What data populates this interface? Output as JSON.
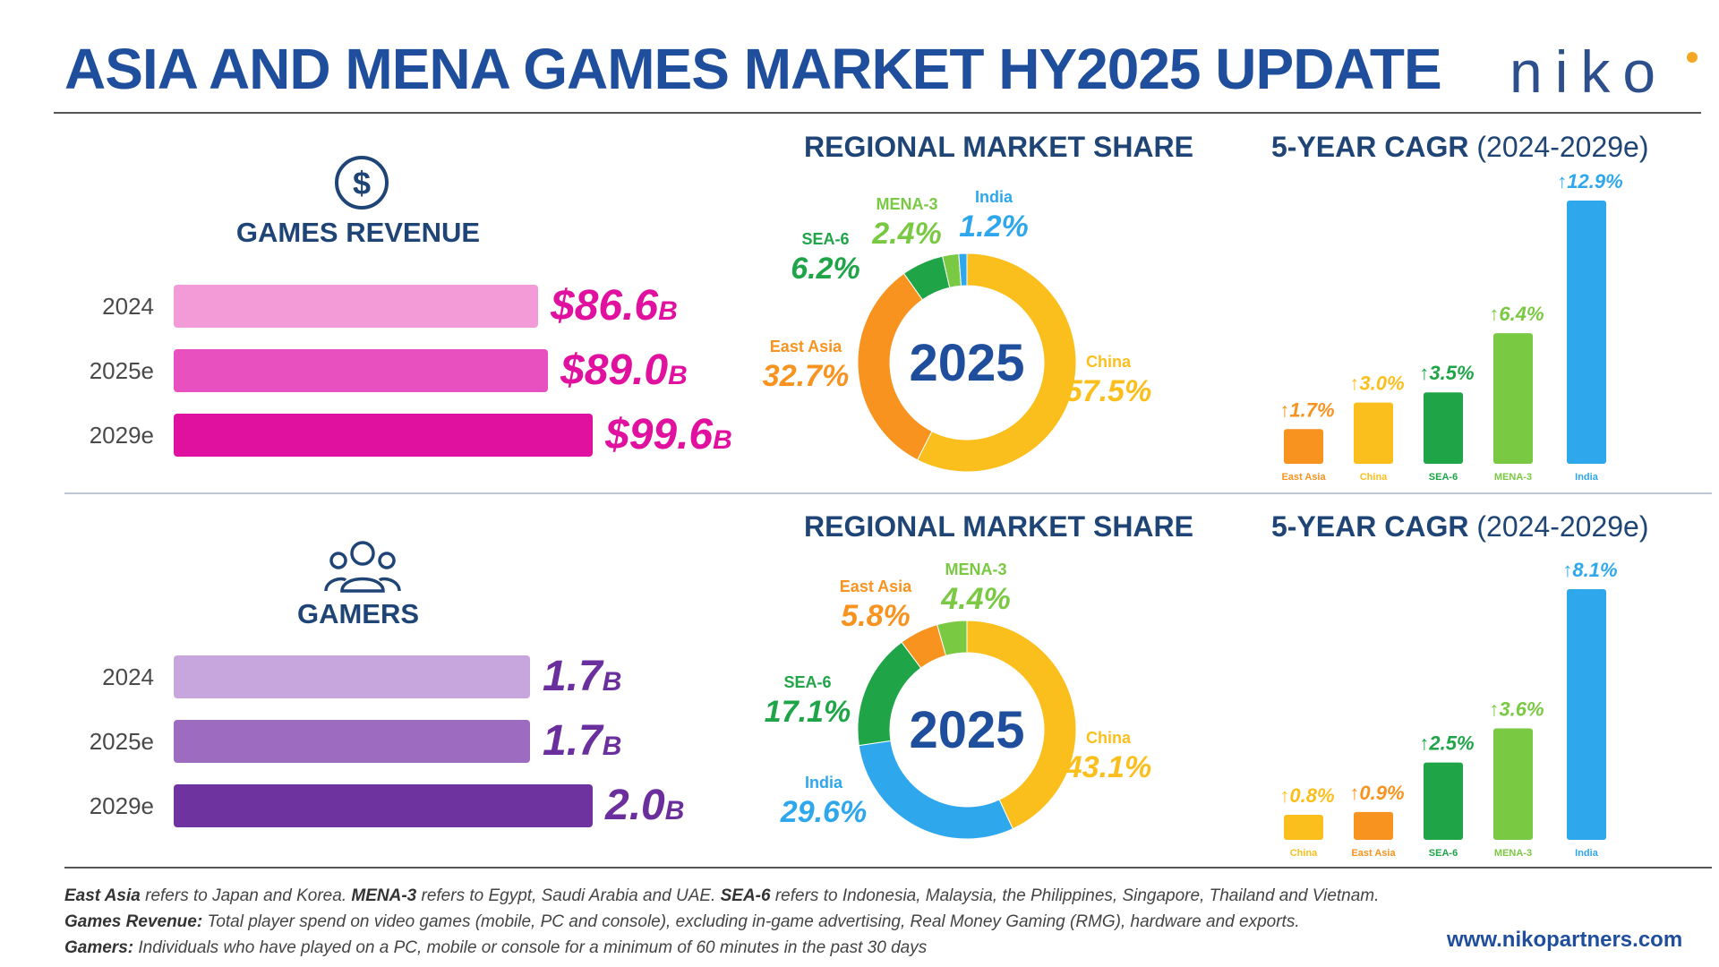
{
  "title": "ASIA AND MENA GAMES MARKET HY2025 UPDATE",
  "logo": "niko",
  "url": "www.nikopartners.com",
  "colors": {
    "east_asia": "#f7931e",
    "china": "#fbbf1d",
    "sea6": "#1fa548",
    "mena3": "#7ac943",
    "india": "#2ea7ec"
  },
  "revenue": {
    "label": "GAMES REVENUE",
    "icon": "dollar-icon",
    "bars": [
      {
        "year": "2024",
        "value": 86.6,
        "display": "$86.6",
        "unit": "B"
      },
      {
        "year": "2025e",
        "value": 89.0,
        "display": "$89.0",
        "unit": "B"
      },
      {
        "year": "2029e",
        "value": 99.6,
        "display": "$99.6",
        "unit": "B"
      }
    ]
  },
  "gamers": {
    "label": "GAMERS",
    "icon": "users-icon",
    "bars": [
      {
        "year": "2024",
        "value": 1.7,
        "display": "1.7",
        "unit": "B"
      },
      {
        "year": "2025e",
        "value": 1.7,
        "display": "1.7",
        "unit": "B"
      },
      {
        "year": "2029e",
        "value": 2.0,
        "display": "2.0",
        "unit": "B"
      }
    ]
  },
  "share_title": "REGIONAL MARKET SHARE",
  "cagr_title": "5-YEAR CAGR",
  "cagr_period": "(2024-2029e)",
  "chart_data": [
    {
      "type": "pie",
      "title": "REGIONAL MARKET SHARE",
      "center_label": "2025",
      "slices": [
        {
          "name": "China",
          "value": 57.5,
          "key": "china"
        },
        {
          "name": "East Asia",
          "value": 32.7,
          "key": "east_asia"
        },
        {
          "name": "SEA-6",
          "value": 6.2,
          "key": "sea6"
        },
        {
          "name": "MENA-3",
          "value": 2.4,
          "key": "mena3"
        },
        {
          "name": "India",
          "value": 1.2,
          "key": "india"
        }
      ]
    },
    {
      "type": "bar",
      "title": "5-YEAR CAGR (2024-2029e)",
      "categories": [
        "East Asia",
        "China",
        "SEA-6",
        "MENA-3",
        "India"
      ],
      "values": [
        1.7,
        3.0,
        3.5,
        6.4,
        12.9
      ],
      "keys": [
        "east_asia",
        "china",
        "sea6",
        "mena3",
        "india"
      ]
    },
    {
      "type": "pie",
      "title": "REGIONAL MARKET SHARE",
      "center_label": "2025",
      "slices": [
        {
          "name": "China",
          "value": 43.1,
          "key": "china"
        },
        {
          "name": "India",
          "value": 29.6,
          "key": "india"
        },
        {
          "name": "SEA-6",
          "value": 17.1,
          "key": "sea6"
        },
        {
          "name": "East Asia",
          "value": 5.8,
          "key": "east_asia"
        },
        {
          "name": "MENA-3",
          "value": 4.4,
          "key": "mena3"
        }
      ]
    },
    {
      "type": "bar",
      "title": "5-YEAR CAGR (2024-2029e)",
      "categories": [
        "China",
        "East Asia",
        "SEA-6",
        "MENA-3",
        "India"
      ],
      "values": [
        0.8,
        0.9,
        2.5,
        3.6,
        8.1
      ],
      "keys": [
        "china",
        "east_asia",
        "sea6",
        "mena3",
        "india"
      ]
    }
  ],
  "notes": [
    {
      "parts": [
        {
          "b": "East Asia"
        },
        {
          "t": " refers to Japan and Korea. "
        },
        {
          "b": "MENA-3"
        },
        {
          "t": " refers to Egypt, Saudi Arabia and UAE. "
        },
        {
          "b": "SEA-6"
        },
        {
          "t": " refers to Indonesia, Malaysia, the Philippines, Singapore, Thailand and Vietnam."
        }
      ]
    },
    {
      "parts": [
        {
          "b": "Games Revenue:"
        },
        {
          "t": " Total player spend on video games (mobile, PC and console), excluding in-game advertising, Real Money Gaming (RMG), hardware and exports."
        }
      ]
    },
    {
      "parts": [
        {
          "b": "Gamers:"
        },
        {
          "t": " Individuals who have played on a PC, mobile or console for a minimum of 60 minutes in the past 30 days"
        }
      ]
    }
  ]
}
